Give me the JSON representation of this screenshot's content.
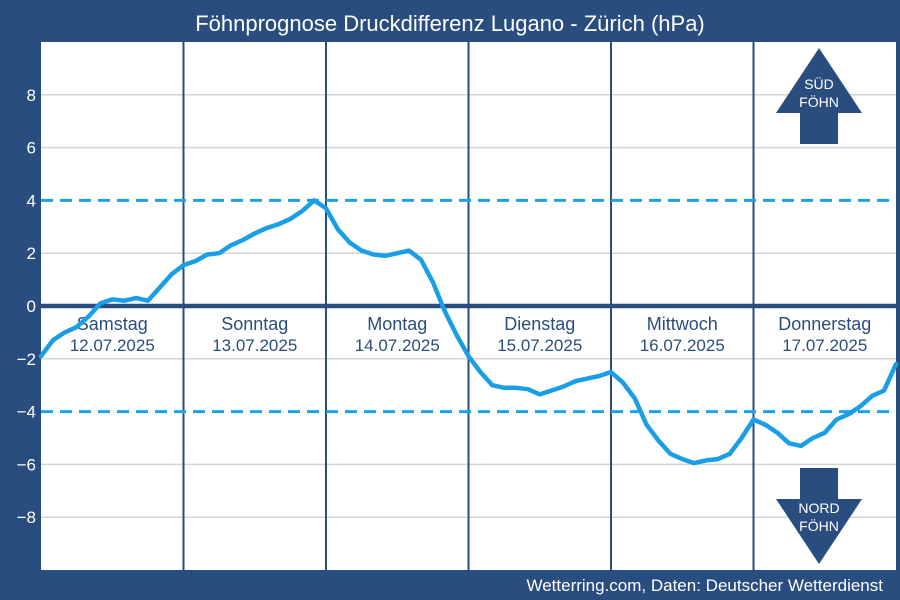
{
  "chart_data": {
    "type": "line",
    "title": "Föhnprognose Druckdifferenz Lugano - Zürich (hPa)",
    "xlabel": "",
    "ylabel": "",
    "ylim": [
      -10,
      10
    ],
    "yticks": [
      -8,
      -6,
      -4,
      -2,
      0,
      2,
      4,
      6,
      8
    ],
    "ytick_labels": [
      "−8",
      "−6",
      "−4",
      "−2",
      "0",
      "2",
      "4",
      "6",
      "8"
    ],
    "grid": true,
    "thresholds": [
      4,
      -4
    ],
    "days": [
      {
        "name": "Samstag",
        "date": "12.07.2025"
      },
      {
        "name": "Sonntag",
        "date": "13.07.2025"
      },
      {
        "name": "Montag",
        "date": "14.07.2025"
      },
      {
        "name": "Dienstag",
        "date": "15.07.2025"
      },
      {
        "name": "Mittwoch",
        "date": "16.07.2025"
      },
      {
        "name": "Donnerstag",
        "date": "17.07.2025"
      }
    ],
    "series": [
      {
        "x": [
          0,
          2,
          4,
          6,
          8,
          10,
          12,
          14,
          16,
          18,
          20,
          22,
          24,
          26,
          28,
          30,
          32,
          34,
          36,
          38,
          40,
          42,
          44,
          46,
          48,
          50,
          52,
          54,
          56,
          58,
          60,
          62,
          64,
          66,
          68,
          70,
          72,
          74,
          76,
          78,
          80,
          82,
          84,
          86,
          88,
          90,
          92,
          94,
          96,
          98,
          100,
          102,
          104,
          106,
          108,
          110,
          112,
          114,
          116,
          118,
          120,
          122,
          124,
          126,
          128,
          130,
          132,
          134,
          136,
          138,
          140,
          142,
          144
        ],
        "values": [
          -1.9,
          -1.3,
          -1.0,
          -0.8,
          -0.4,
          0.1,
          0.25,
          0.2,
          0.3,
          0.2,
          0.7,
          1.2,
          1.55,
          1.7,
          1.95,
          2.0,
          2.3,
          2.5,
          2.75,
          2.95,
          3.1,
          3.3,
          3.6,
          4.0,
          3.7,
          2.9,
          2.4,
          2.1,
          1.95,
          1.9,
          2.0,
          2.1,
          1.75,
          0.9,
          -0.2,
          -1.1,
          -1.9,
          -2.5,
          -3.0,
          -3.1,
          -3.1,
          -3.15,
          -3.35,
          -3.2,
          -3.05,
          -2.85,
          -2.75,
          -2.65,
          -2.5,
          -2.9,
          -3.5,
          -4.5,
          -5.1,
          -5.6,
          -5.8,
          -5.95,
          -5.85,
          -5.8,
          -5.6,
          -5.0,
          -4.3,
          -4.5,
          -4.8,
          -5.2,
          -5.3,
          -5.0,
          -4.8,
          -4.3,
          -4.1,
          -3.8,
          -3.4,
          -3.2,
          -2.2
        ]
      }
    ],
    "annotations": {
      "sued_foehn": [
        "SÜD",
        "FÖHN"
      ],
      "nord_foehn": [
        "NORD",
        "FÖHN"
      ]
    },
    "colors": {
      "frame": "#2a4d7f",
      "plot_bg": "#ffffff",
      "line": "#1a9ee6",
      "threshold": "#1aa3e8",
      "zero": "#2a4d7f",
      "grid": "#d4d4d4",
      "arrow": "#2a4d7f"
    }
  },
  "footer": {
    "credit": "Wetterring.com, Daten: Deutscher Wetterdienst"
  }
}
